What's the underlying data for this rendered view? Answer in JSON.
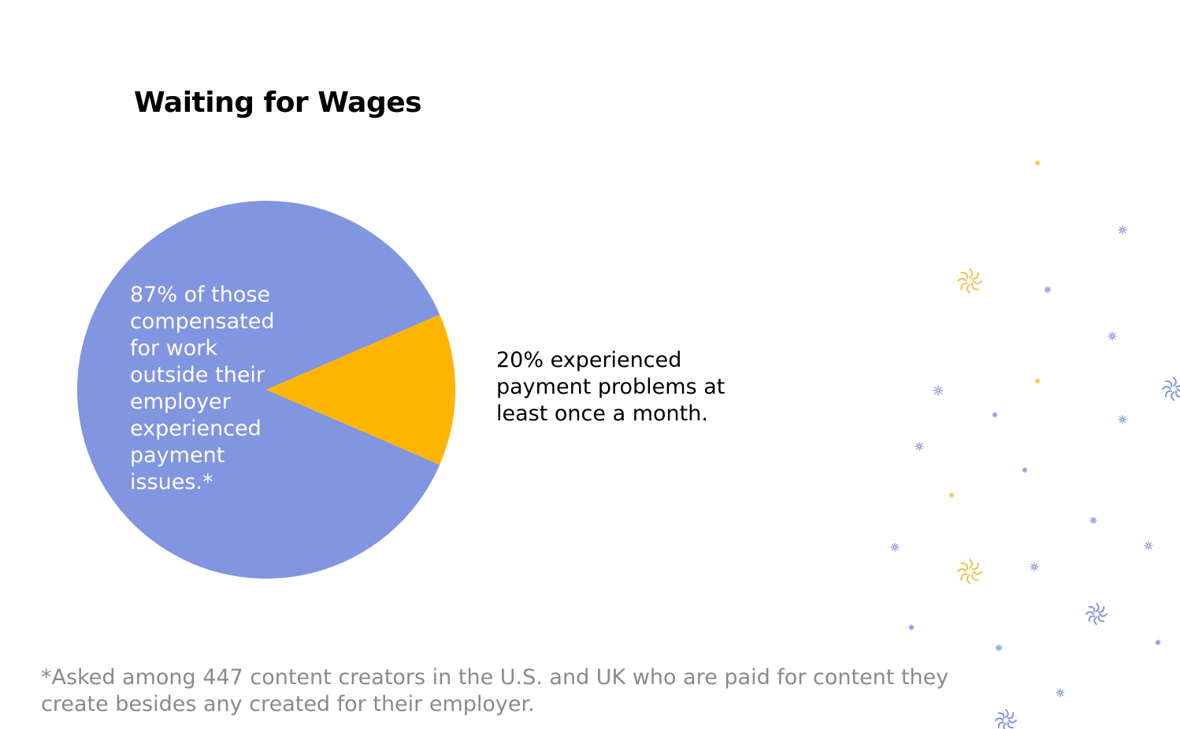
{
  "chart_data": {
    "type": "pie",
    "title": "Waiting for Wages",
    "slices": [
      {
        "value": 87,
        "label": "87% of those compensated for work outside their employer experienced payment issues.*",
        "color": "#8195e0"
      },
      {
        "value": 13,
        "label": "20% experienced payment problems at least once a month.",
        "color": "#fdb600"
      }
    ],
    "footnote": "*Asked among 447 content creators in the U.S. and UK who are paid for content they create besides any created for their employer."
  },
  "decoration": {
    "icon": "sparkle-icon",
    "colors": [
      "#8195e0",
      "#f2c14e"
    ]
  }
}
